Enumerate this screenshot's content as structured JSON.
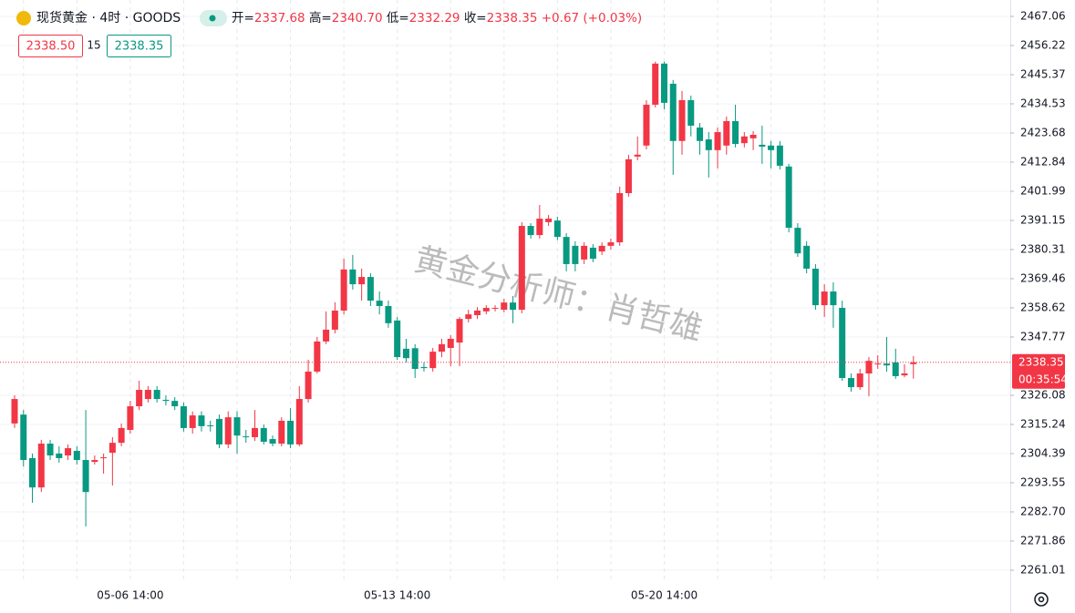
{
  "header": {
    "title": "现货黄金 · 4时 · GOODS",
    "open_label": "开=",
    "open": "2337.68",
    "high_label": "高=",
    "high": "2340.70",
    "low_label": "低=",
    "low": "2332.29",
    "close_label": "收=",
    "close": "2338.35",
    "change": "+0.67 (+0.03%)",
    "bid": "2338.50",
    "spread": "15",
    "ask": "2338.35"
  },
  "watermark": "黄金分析师：肖哲雄",
  "chart_data": {
    "type": "candlestick",
    "categories": [
      null,
      null,
      null,
      null,
      null,
      null,
      null,
      null,
      null,
      null,
      null,
      null,
      null,
      "05-06 14:00",
      null,
      null,
      null,
      null,
      null,
      null,
      null,
      null,
      null,
      null,
      null,
      null,
      null,
      null,
      null,
      null,
      null,
      null,
      null,
      null,
      null,
      null,
      null,
      null,
      null,
      null,
      null,
      null,
      null,
      "05-13 14:00",
      null,
      null,
      null,
      null,
      null,
      null,
      null,
      null,
      null,
      null,
      null,
      null,
      null,
      null,
      null,
      null,
      null,
      null,
      null,
      null,
      null,
      null,
      null,
      null,
      null,
      null,
      null,
      null,
      null,
      "05-20 14:00",
      null,
      null,
      null,
      null,
      null,
      null,
      null,
      null,
      null,
      null,
      null,
      null,
      null,
      null,
      null,
      null,
      null,
      null,
      null,
      null,
      null,
      null,
      null,
      null,
      null,
      null,
      null,
      null
    ],
    "open": [
      2315.6,
      2318.9,
      2302.7,
      2291.8,
      2308.1,
      2304.4,
      2303.7,
      2305.4,
      2302.0,
      2301.3,
      2302.7,
      2304.7,
      2308.4,
      2313.2,
      2322.0,
      2324.7,
      2328.1,
      2324.4,
      2324.0,
      2322.0,
      2313.9,
      2318.6,
      2314.9,
      2317.3,
      2307.8,
      2317.9,
      2310.8,
      2310.5,
      2313.9,
      2309.8,
      2308.1,
      2316.6,
      2307.8,
      2324.7,
      2334.9,
      2346.1,
      2350.5,
      2357.6,
      2372.9,
      2367.4,
      2370.1,
      2361.3,
      2359.3,
      2353.9,
      2343.4,
      2343.6,
      2336.6,
      2336.2,
      2342.3,
      2343.7,
      2345.7,
      2354.5,
      2355.9,
      2357.3,
      2358.3,
      2357.9,
      2360.6,
      2357.9,
      2389.1,
      2385.7,
      2390.5,
      2391.1,
      2385.0,
      2381.7,
      2376.6,
      2381.0,
      2379.6,
      2381.7,
      2383.0,
      2401.3,
      2414.9,
      2419.0,
      2434.2,
      2449.5,
      2442.0,
      2420.7,
      2435.9,
      2425.7,
      2421.3,
      2417.3,
      2419.0,
      2428.1,
      2419.9,
      2421.7,
      2419.3,
      2419.0,
      2419.0,
      2411.2,
      2388.4,
      2381.7,
      2373.2,
      2359.6,
      2364.7,
      2358.6,
      2332.5,
      2329.1,
      2334.2,
      2337.6,
      2337.9,
      2338.3,
      2333.5,
      2337.68
    ],
    "high": [
      2326.1,
      2320.6,
      2304.4,
      2309.5,
      2309.5,
      2307.1,
      2307.8,
      2307.1,
      2320.6,
      2303.7,
      2304.4,
      2310.5,
      2315.6,
      2324.0,
      2331.5,
      2329.5,
      2329.5,
      2326.1,
      2325.4,
      2323.4,
      2320.1,
      2320.1,
      2316.6,
      2318.9,
      2320.1,
      2320.1,
      2313.2,
      2320.6,
      2315.2,
      2311.1,
      2317.9,
      2321.3,
      2329.5,
      2339.3,
      2347.8,
      2357.3,
      2360.7,
      2376.9,
      2378.3,
      2373.2,
      2371.5,
      2364.7,
      2361.3,
      2355.2,
      2347.1,
      2345.1,
      2338.3,
      2343.7,
      2347.1,
      2348.5,
      2355.2,
      2357.9,
      2358.9,
      2359.6,
      2359.6,
      2362.0,
      2363.0,
      2390.5,
      2390.1,
      2396.9,
      2393.2,
      2392.5,
      2386.4,
      2383.4,
      2383.0,
      2382.3,
      2383.0,
      2384.4,
      2403.7,
      2415.6,
      2422.4,
      2435.9,
      2450.2,
      2450.2,
      2443.4,
      2439.3,
      2437.6,
      2427.4,
      2424.0,
      2425.7,
      2429.8,
      2434.2,
      2424.0,
      2424.4,
      2426.4,
      2420.7,
      2420.7,
      2412.2,
      2390.1,
      2383.4,
      2374.9,
      2367.4,
      2368.1,
      2361.3,
      2334.2,
      2335.9,
      2340.3,
      2341.0,
      2347.8,
      2343.4,
      2337.6,
      2340.7
    ],
    "low": [
      2313.9,
      2299.6,
      2286.1,
      2290.1,
      2302.0,
      2301.0,
      2302.0,
      2300.3,
      2277.3,
      2300.3,
      2296.9,
      2292.5,
      2307.1,
      2311.8,
      2320.6,
      2323.4,
      2323.4,
      2322.3,
      2320.6,
      2312.6,
      2311.8,
      2312.6,
      2312.6,
      2306.4,
      2306.4,
      2304.4,
      2308.4,
      2309.1,
      2307.8,
      2307.1,
      2307.1,
      2306.4,
      2307.1,
      2323.4,
      2334.2,
      2345.1,
      2349.1,
      2356.2,
      2365.4,
      2361.3,
      2359.3,
      2356.2,
      2351.2,
      2339.3,
      2338.3,
      2332.5,
      2334.9,
      2334.9,
      2340.3,
      2336.9,
      2336.9,
      2353.2,
      2354.5,
      2356.2,
      2357.3,
      2356.9,
      2352.9,
      2356.6,
      2384.4,
      2384.4,
      2389.1,
      2383.8,
      2372.2,
      2372.2,
      2374.9,
      2375.6,
      2378.3,
      2380.3,
      2381.7,
      2400.0,
      2413.5,
      2417.6,
      2433.2,
      2432.5,
      2408.1,
      2415.6,
      2422.4,
      2415.6,
      2407.1,
      2410.5,
      2415.6,
      2418.3,
      2418.3,
      2417.3,
      2412.2,
      2410.5,
      2410.1,
      2386.7,
      2377.6,
      2371.5,
      2357.9,
      2355.2,
      2351.2,
      2331.5,
      2327.4,
      2328.1,
      2325.7,
      2335.9,
      2334.9,
      2332.2,
      2332.8,
      2332.29
    ],
    "close": [
      2324.7,
      2302.0,
      2291.8,
      2308.1,
      2303.7,
      2302.7,
      2306.4,
      2302.0,
      2290.1,
      2302.0,
      2303.0,
      2308.4,
      2313.9,
      2322.0,
      2328.1,
      2328.1,
      2324.7,
      2324.0,
      2322.0,
      2313.9,
      2318.6,
      2314.6,
      2314.6,
      2307.8,
      2317.9,
      2311.1,
      2310.5,
      2313.9,
      2308.8,
      2308.1,
      2316.6,
      2307.8,
      2324.7,
      2334.9,
      2346.1,
      2350.5,
      2357.6,
      2372.9,
      2367.4,
      2370.1,
      2361.3,
      2359.3,
      2352.9,
      2340.3,
      2339.9,
      2335.9,
      2336.2,
      2342.3,
      2345.1,
      2347.1,
      2354.5,
      2356.2,
      2357.6,
      2358.6,
      2358.6,
      2360.6,
      2357.9,
      2389.1,
      2385.7,
      2391.8,
      2391.8,
      2385.0,
      2374.9,
      2374.9,
      2381.7,
      2376.9,
      2381.7,
      2383.0,
      2401.3,
      2413.9,
      2415.6,
      2434.2,
      2449.5,
      2434.9,
      2420.7,
      2435.9,
      2426.4,
      2420.7,
      2417.3,
      2424.0,
      2428.1,
      2419.6,
      2422.4,
      2423.0,
      2418.6,
      2417.3,
      2411.5,
      2388.4,
      2378.9,
      2373.2,
      2359.6,
      2364.7,
      2359.6,
      2332.5,
      2329.1,
      2334.2,
      2338.9,
      2337.9,
      2337.2,
      2333.2,
      2334.2,
      2338.35
    ],
    "up_color": "#f23645",
    "down_color": "#089981",
    "ylim": [
      2256.26,
      2473.16
    ],
    "yticks": [
      2467.06,
      2456.22,
      2445.37,
      2434.53,
      2423.68,
      2412.84,
      2401.99,
      2391.15,
      2380.31,
      2369.46,
      2358.62,
      2347.77,
      2326.08,
      2315.24,
      2304.39,
      2293.55,
      {
        "value": 2282.7,
        "label": "2282.70"
      },
      2271.86,
      2261.01
    ],
    "grid": true,
    "last_price": 2338.35,
    "countdown": "00:35:54"
  }
}
